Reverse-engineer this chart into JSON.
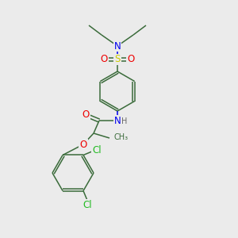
{
  "bg_color": "#ebebeb",
  "bond_color": "#3a6b3a",
  "atom_colors": {
    "N": "#0000ee",
    "O": "#ee0000",
    "S": "#cccc00",
    "Cl": "#22bb22",
    "C": "#3a6b3a",
    "H": "#666666"
  },
  "font_size_atoms": 8.5,
  "font_size_small": 7.5,
  "lw": 1.1
}
